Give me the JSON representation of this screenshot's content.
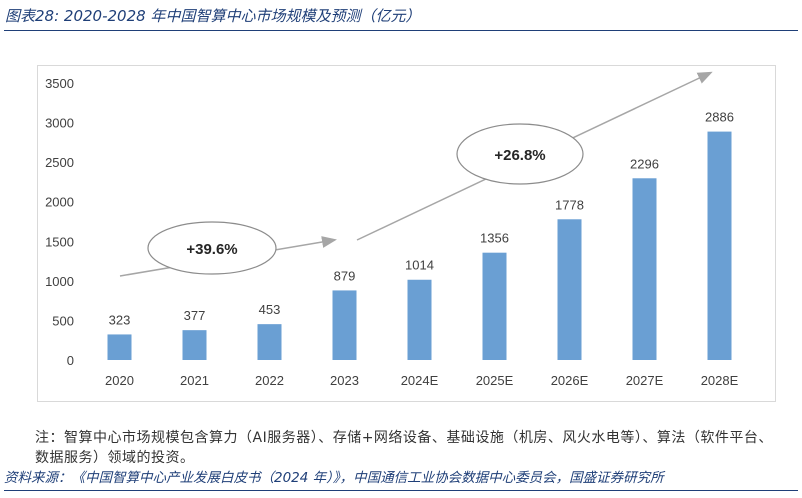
{
  "figure_title": "图表28: 2020-2028 年中国智算中心市场规模及预测（亿元）",
  "note": "注：智算中心市场规模包含算力（AI服务器）、存储+网络设备、基础设施（机房、风火水电等）、算法（软件平台、数据服务）领域的投资。",
  "source": "资料来源：《中国智算中心产业发展白皮书（2024 年）》，中国通信工业协会数据中心委员会，国盛证券研究所",
  "colors": {
    "bar": "#6a9fd3",
    "title": "#1f3f78",
    "arrow": "#a6a6a6"
  },
  "chart_data": {
    "type": "bar",
    "categories": [
      "2020",
      "2021",
      "2022",
      "2023",
      "2024E",
      "2025E",
      "2026E",
      "2027E",
      "2028E"
    ],
    "values": [
      323,
      377,
      453,
      879,
      1014,
      1356,
      1778,
      2296,
      2886
    ],
    "value_labels": [
      "323",
      "377",
      "453",
      "879",
      "1014",
      "1356",
      "1778",
      "2296",
      "2886"
    ],
    "ylim": [
      0,
      3500
    ],
    "yticks": [
      0,
      500,
      1000,
      1500,
      2000,
      2500,
      3000,
      3500
    ],
    "ytick_labels": [
      "0",
      "500",
      "1000",
      "1500",
      "2000",
      "2500",
      "3000",
      "3500"
    ],
    "grid": false,
    "legend": "none",
    "annotations": [
      {
        "text": "+39.6%",
        "from_category": "2020",
        "to_category": "2023"
      },
      {
        "text": "+26.8%",
        "from_category": "2023",
        "to_category": "2028E"
      }
    ]
  }
}
